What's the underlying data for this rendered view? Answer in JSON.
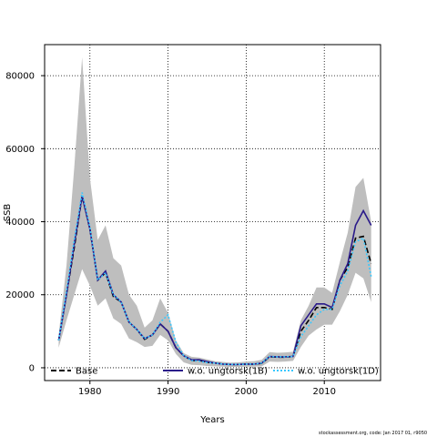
{
  "chart_data": {
    "type": "line",
    "title": "",
    "xlabel": "Years",
    "ylabel": "SSB",
    "xlim": [
      1974.2,
      2017.2
    ],
    "ylim": [
      -3500,
      88500
    ],
    "grid": true,
    "x_ticks": [
      1980,
      1990,
      2000,
      2010
    ],
    "y_ticks": [
      0,
      20000,
      40000,
      60000,
      80000
    ],
    "x_tick_labels": [
      "1980",
      "1990",
      "2000",
      "2010"
    ],
    "y_tick_labels": [
      "0",
      "20000",
      "40000",
      "60000",
      "80000"
    ],
    "legend_position": "bottom",
    "band_color": "#bebebe",
    "x": [
      1976,
      1977,
      1978,
      1979,
      1980,
      1981,
      1982,
      1983,
      1984,
      1985,
      1986,
      1987,
      1988,
      1989,
      1990,
      1991,
      1992,
      1993,
      1994,
      1995,
      1996,
      1997,
      1998,
      1999,
      2000,
      2001,
      2002,
      2003,
      2004,
      2005,
      2006,
      2007,
      2008,
      2009,
      2010,
      2011,
      2012,
      2013,
      2014,
      2015,
      2016
    ],
    "confidence_band": {
      "upper": [
        9000,
        28000,
        55000,
        85000,
        52000,
        35000,
        39000,
        30000,
        28000,
        20000,
        17000,
        11000,
        13000,
        19000,
        15000,
        7500,
        4000,
        3000,
        2800,
        2300,
        1800,
        1600,
        1400,
        1500,
        1700,
        1800,
        2200,
        4300,
        4100,
        4200,
        4400,
        13000,
        17000,
        22000,
        22000,
        20500,
        29000,
        37000,
        49500,
        52000,
        40000
      ],
      "lower": [
        5500,
        13000,
        20000,
        27000,
        22500,
        17000,
        19000,
        13500,
        12000,
        8000,
        7000,
        5700,
        6000,
        9000,
        7500,
        3800,
        1500,
        800,
        700,
        500,
        400,
        300,
        200,
        200,
        300,
        300,
        400,
        1700,
        1600,
        1700,
        1900,
        5700,
        8800,
        10500,
        11800,
        11800,
        15500,
        20000,
        26000,
        24500,
        18000
      ]
    },
    "series": [
      {
        "name": "Base",
        "color": "#000000",
        "dash": "6,3",
        "values": [
          7500,
          20000,
          33000,
          47000,
          38000,
          24000,
          26000,
          19500,
          18000,
          12500,
          10500,
          7800,
          9000,
          12000,
          10000,
          5500,
          3300,
          2000,
          2000,
          1500,
          1300,
          1000,
          900,
          900,
          1000,
          1000,
          1200,
          3000,
          2900,
          2900,
          3100,
          10000,
          13000,
          16500,
          16500,
          16000,
          24000,
          27500,
          35500,
          36000,
          28500
        ]
      },
      {
        "name": "w.o. ungtorsk(1B)",
        "color": "#2a1a8a",
        "dash": "",
        "values": [
          7500,
          20000,
          34000,
          47000,
          38000,
          24000,
          26500,
          20000,
          18000,
          12500,
          10500,
          8000,
          9000,
          12000,
          10000,
          5500,
          3300,
          2200,
          2200,
          1700,
          1300,
          1000,
          900,
          900,
          1000,
          1000,
          1300,
          3100,
          3000,
          3000,
          3100,
          11500,
          14500,
          17500,
          17500,
          16500,
          24000,
          28500,
          39000,
          43000,
          39000
        ]
      },
      {
        "name": "w.o. ungtorsk(1D)",
        "color": "#38c8ff",
        "dash": "2,2",
        "values": [
          7500,
          21000,
          35000,
          48000,
          38500,
          24000,
          26000,
          20000,
          18000,
          12500,
          10500,
          8000,
          9000,
          12500,
          14500,
          7000,
          3300,
          2000,
          1800,
          1400,
          1300,
          1000,
          900,
          900,
          1000,
          1000,
          1300,
          3100,
          3000,
          3000,
          3100,
          8500,
          11500,
          14500,
          16000,
          16000,
          22500,
          26500,
          34500,
          35500,
          25000
        ]
      }
    ]
  },
  "footer": {
    "text": "stockassessment.org, code: Jan  2017 01, r9050"
  }
}
